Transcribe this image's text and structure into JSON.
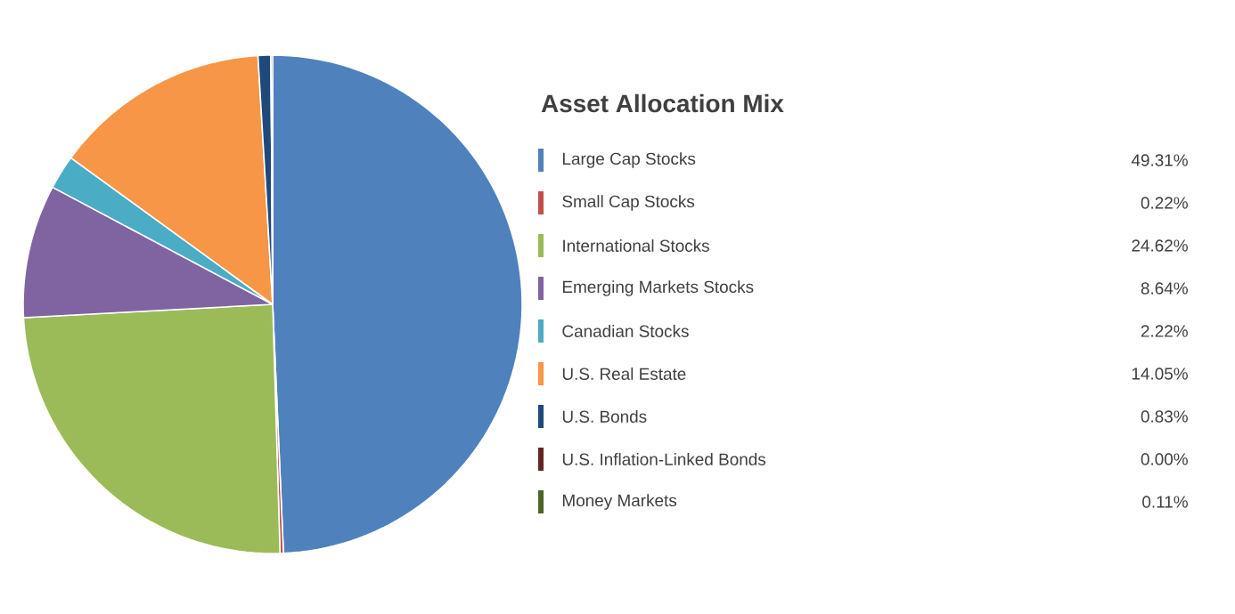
{
  "chart_data": {
    "type": "pie",
    "title": "Asset Allocation Mix",
    "legend": "right",
    "categories": [
      "Large Cap Stocks",
      "Small Cap Stocks",
      "International Stocks",
      "Emerging Markets Stocks",
      "Canadian Stocks",
      "U.S. Real Estate",
      "U.S. Bonds",
      "U.S. Inflation-Linked  Bonds",
      "Money Markets"
    ],
    "values": [
      49.31,
      0.22,
      24.62,
      8.64,
      2.22,
      14.05,
      0.83,
      0.0,
      0.11
    ],
    "value_labels": [
      "49.31%",
      "0.22%",
      "24.62%",
      "8.64%",
      "2.22%",
      "14.05%",
      "0.83%",
      "0.00%",
      "0.11%"
    ],
    "colors": [
      "#4f81bd",
      "#c0504d",
      "#9bbb59",
      "#8064a2",
      "#4bacc6",
      "#f79646",
      "#1f497d",
      "#632523",
      "#4f6228"
    ]
  }
}
